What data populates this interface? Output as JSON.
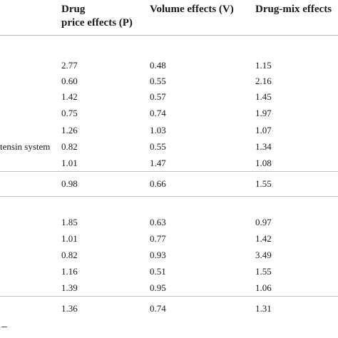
{
  "table": {
    "headers": {
      "price_line1": "Drug",
      "price_line2": "price effects (P)",
      "volume": "Volume effects (V)",
      "drugmix": "Drug-mix effects"
    },
    "group1": {
      "rows": [
        {
          "label": "",
          "p": "2.77",
          "v": "0.48",
          "d": "1.15"
        },
        {
          "label": "",
          "p": "0.60",
          "v": "0.55",
          "d": "2.16"
        },
        {
          "label": "",
          "p": "1.42",
          "v": "0.57",
          "d": "1.45"
        },
        {
          "label": "",
          "p": "0.75",
          "v": "0.74",
          "d": "1.97"
        },
        {
          "label": "",
          "p": "1.26",
          "v": "1.03",
          "d": "1.07"
        },
        {
          "label": "tensin system",
          "p": "0.82",
          "v": "0.55",
          "d": "1.34"
        },
        {
          "label": "",
          "p": "1.01",
          "v": "1.47",
          "d": "1.08"
        }
      ],
      "summary": {
        "label": "",
        "p": "0.98",
        "v": "0.66",
        "d": "1.55"
      }
    },
    "group2": {
      "rows": [
        {
          "label": "",
          "p": "1.85",
          "v": "0.63",
          "d": "0.97"
        },
        {
          "label": "",
          "p": "1.01",
          "v": "0.77",
          "d": "1.42"
        },
        {
          "label": "",
          "p": "0.82",
          "v": "0.93",
          "d": "3.49"
        },
        {
          "label": "",
          "p": "1.16",
          "v": "0.51",
          "d": "1.55"
        },
        {
          "label": "",
          "p": "1.39",
          "v": "0.95",
          "d": "1.06"
        }
      ],
      "summary": {
        "label": "",
        "p": "1.36",
        "v": "0.74",
        "d": "1.31"
      }
    }
  }
}
